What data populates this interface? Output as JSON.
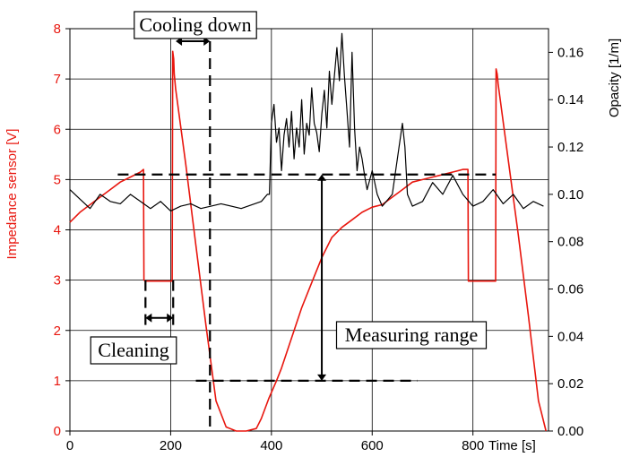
{
  "chart_data": {
    "type": "line",
    "title": "",
    "xlabel": "Time [s]",
    "ylabel_left": "Impedance sensor [V]",
    "ylabel_right": "Opacity [1/m]",
    "xlim": [
      0,
      950
    ],
    "ylim_left": [
      0,
      8
    ],
    "ylim_right": [
      0,
      0.17
    ],
    "x_ticks": [
      "0",
      "200",
      "400",
      "600",
      "800"
    ],
    "y_left_ticks": [
      "0",
      "1",
      "2",
      "3",
      "4",
      "5",
      "6",
      "7",
      "8"
    ],
    "y_right_ticks": [
      "0.00",
      "0.02",
      "0.04",
      "0.06",
      "0.08",
      "0.10",
      "0.12",
      "0.14",
      "0.16"
    ],
    "grid": true,
    "colors": {
      "impedance": "#e8160e",
      "opacity": "#000000",
      "annotation": "#000000"
    },
    "series": [
      {
        "name": "Impedance sensor [V]",
        "axis": "left",
        "x": [
          0,
          20,
          40,
          60,
          80,
          100,
          120,
          140,
          146,
          147,
          150,
          180,
          195,
          200,
          203,
          204,
          206,
          207,
          210,
          230,
          250,
          270,
          290,
          310,
          330,
          350,
          370,
          380,
          395,
          410,
          420,
          430,
          440,
          460,
          480,
          500,
          520,
          540,
          560,
          580,
          600,
          620,
          640,
          660,
          680,
          700,
          720,
          740,
          760,
          780,
          790,
          791,
          795,
          830,
          840,
          845,
          846,
          848,
          850,
          870,
          890,
          910,
          930,
          945
        ],
        "y": [
          4.15,
          4.35,
          4.5,
          4.65,
          4.8,
          4.95,
          5.05,
          5.15,
          5.2,
          3.0,
          2.98,
          2.98,
          2.98,
          2.98,
          2.98,
          7.55,
          7.4,
          7.1,
          6.8,
          5.3,
          3.7,
          2.1,
          0.6,
          0.08,
          0.0,
          0.0,
          0.05,
          0.25,
          0.65,
          1.0,
          1.25,
          1.55,
          1.85,
          2.45,
          2.95,
          3.45,
          3.85,
          4.05,
          4.2,
          4.35,
          4.45,
          4.5,
          4.65,
          4.8,
          4.95,
          5.0,
          5.05,
          5.1,
          5.15,
          5.2,
          5.2,
          2.98,
          2.98,
          2.98,
          2.98,
          2.98,
          7.2,
          7.1,
          6.9,
          5.4,
          3.9,
          2.3,
          0.6,
          0.0
        ]
      },
      {
        "name": "Opacity [1/m]",
        "axis": "right",
        "x": [
          0,
          20,
          40,
          60,
          80,
          100,
          120,
          140,
          160,
          180,
          200,
          220,
          240,
          260,
          280,
          300,
          340,
          380,
          392,
          396,
          400,
          405,
          410,
          415,
          420,
          425,
          430,
          435,
          440,
          445,
          450,
          455,
          460,
          465,
          470,
          475,
          480,
          485,
          490,
          495,
          500,
          505,
          510,
          515,
          520,
          525,
          530,
          535,
          540,
          545,
          550,
          555,
          560,
          565,
          570,
          575,
          580,
          585,
          590,
          600,
          610,
          620,
          640,
          660,
          665,
          670,
          680,
          700,
          720,
          740,
          760,
          780,
          800,
          820,
          840,
          860,
          880,
          900,
          920,
          940
        ],
        "y": [
          0.102,
          0.098,
          0.094,
          0.1,
          0.097,
          0.096,
          0.1,
          0.097,
          0.094,
          0.097,
          0.093,
          0.095,
          0.096,
          0.094,
          0.095,
          0.096,
          0.094,
          0.097,
          0.1,
          0.1,
          0.13,
          0.138,
          0.122,
          0.128,
          0.11,
          0.125,
          0.132,
          0.12,
          0.135,
          0.115,
          0.128,
          0.12,
          0.14,
          0.117,
          0.13,
          0.125,
          0.145,
          0.13,
          0.126,
          0.118,
          0.134,
          0.144,
          0.128,
          0.152,
          0.138,
          0.15,
          0.162,
          0.148,
          0.168,
          0.15,
          0.135,
          0.12,
          0.16,
          0.128,
          0.11,
          0.12,
          0.115,
          0.108,
          0.102,
          0.11,
          0.1,
          0.095,
          0.1,
          0.13,
          0.12,
          0.1,
          0.095,
          0.097,
          0.105,
          0.1,
          0.108,
          0.1,
          0.095,
          0.097,
          0.102,
          0.096,
          0.1,
          0.094,
          0.097,
          0.095
        ]
      }
    ],
    "annotations": [
      {
        "text": "Cooling down",
        "type": "double-arrow-x",
        "x1": 210,
        "x2": 278,
        "y": 7.75,
        "line_x": 278,
        "line_y_top": 7.75,
        "line_y_bottom": 0
      },
      {
        "text": "Cleaning",
        "type": "double-arrow-x",
        "x1": 150,
        "x2": 205,
        "y": 2.25,
        "line_x1": 150,
        "line_x2": 205
      },
      {
        "text": "Measuring range",
        "type": "double-arrow-y",
        "x": 500,
        "y1": 5.1,
        "y2": 1.0
      },
      {
        "type": "dashed-hline",
        "x1": 95,
        "x2": 845,
        "y": 5.1
      },
      {
        "type": "dashed-hline",
        "x1": 250,
        "x2": 690,
        "y": 1.0
      }
    ]
  }
}
